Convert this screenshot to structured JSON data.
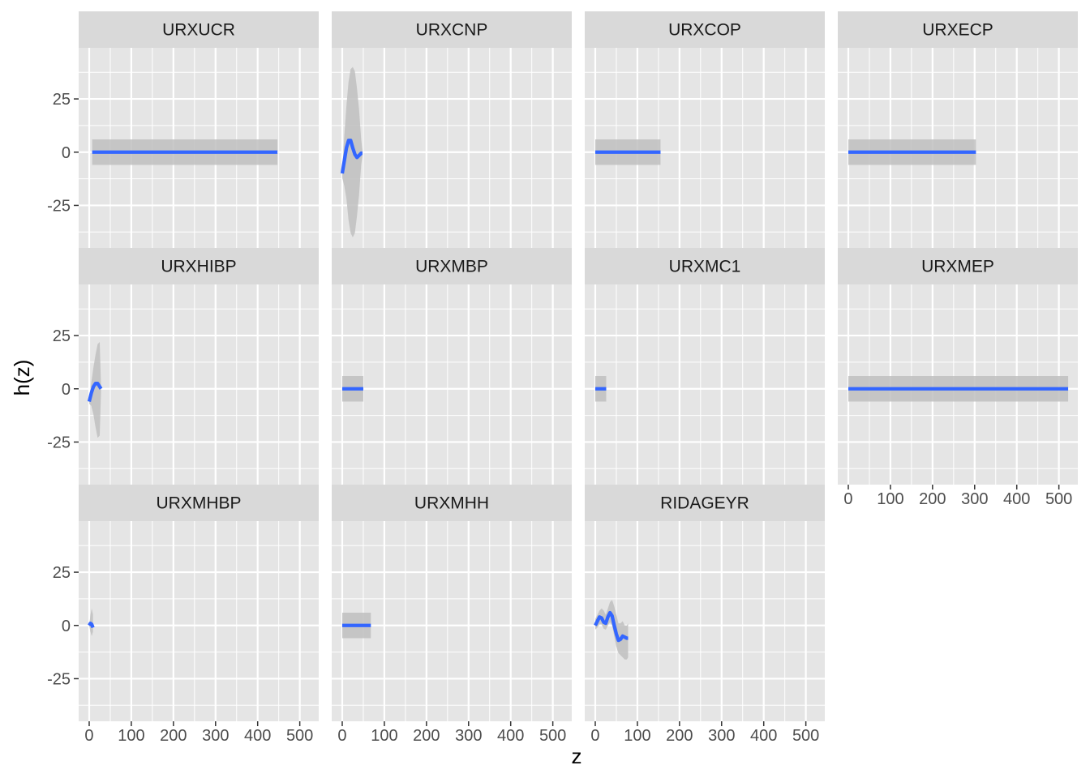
{
  "chart_data": {
    "type": "line",
    "xlabel": "z",
    "ylabel": "h(z)",
    "xlim": [
      -25,
      545
    ],
    "ylim": [
      -45,
      49
    ],
    "x_ticks": [
      0,
      100,
      200,
      300,
      400,
      500
    ],
    "y_ticks": [
      -25,
      0,
      25
    ],
    "grid": true,
    "legend": "none",
    "colors": {
      "line": "#3366ff",
      "ribbon": "#bfbfbf",
      "panel_background": "#e5e5e5",
      "strip_background": "#d9d9d9",
      "grid": "#ffffff"
    },
    "facets": [
      {
        "name": "URXUCR",
        "x": [
          7,
          447
        ],
        "y": [
          0,
          0
        ],
        "lower": [
          -6,
          -6
        ],
        "upper": [
          6,
          6
        ]
      },
      {
        "name": "URXCNP",
        "x": [
          0,
          5,
          10,
          15,
          20,
          25,
          30,
          35,
          40,
          45,
          48
        ],
        "y": [
          -10,
          -4,
          2,
          5.5,
          5.5,
          2,
          -1,
          -2.5,
          -1.5,
          -0.5,
          -0.5
        ],
        "lower": [
          -12,
          -16,
          -22,
          -32,
          -38,
          -40,
          -38,
          -30,
          -20,
          -6,
          -2
        ],
        "upper": [
          -8,
          8,
          22,
          33,
          39,
          40,
          38,
          30,
          20,
          6,
          1
        ]
      },
      {
        "name": "URXCOP",
        "x": [
          0,
          155
        ],
        "y": [
          0,
          0
        ],
        "lower": [
          -6,
          -6
        ],
        "upper": [
          6,
          6
        ]
      },
      {
        "name": "URXECP",
        "x": [
          0,
          303
        ],
        "y": [
          0,
          0
        ],
        "lower": [
          -6,
          -6
        ],
        "upper": [
          6,
          6
        ]
      },
      {
        "name": "URXHIBP",
        "x": [
          0,
          5,
          10,
          15,
          20,
          25,
          28
        ],
        "y": [
          -6,
          -2,
          1,
          2.5,
          2.5,
          1,
          0
        ],
        "lower": [
          -7,
          -8,
          -12,
          -18,
          -23,
          -22,
          -2
        ],
        "upper": [
          -5,
          3,
          10,
          16,
          21,
          22,
          2
        ]
      },
      {
        "name": "URXMBP",
        "x": [
          0,
          50
        ],
        "y": [
          0,
          0
        ],
        "lower": [
          -6,
          -6
        ],
        "upper": [
          6,
          6
        ]
      },
      {
        "name": "URXMC1",
        "x": [
          0,
          26
        ],
        "y": [
          0,
          0
        ],
        "lower": [
          -6,
          -6
        ],
        "upper": [
          6,
          6
        ]
      },
      {
        "name": "URXMEP",
        "x": [
          0,
          522
        ],
        "y": [
          0,
          0
        ],
        "lower": [
          -6,
          -6
        ],
        "upper": [
          6,
          6
        ]
      },
      {
        "name": "URXMHBP",
        "x": [
          0,
          3,
          6,
          9
        ],
        "y": [
          0,
          1,
          0.5,
          -1
        ],
        "lower": [
          0,
          -3,
          -5,
          -3
        ],
        "upper": [
          0,
          5,
          8,
          5
        ]
      },
      {
        "name": "URXMHH",
        "x": [
          0,
          68
        ],
        "y": [
          0,
          0
        ],
        "lower": [
          -6,
          -6
        ],
        "upper": [
          6,
          6
        ]
      },
      {
        "name": "RIDAGEYR",
        "x": [
          0,
          5,
          10,
          15,
          20,
          25,
          30,
          35,
          40,
          45,
          50,
          55,
          60,
          65,
          70,
          75,
          78
        ],
        "y": [
          0,
          2,
          4,
          3.5,
          1.5,
          1,
          4,
          6,
          4.5,
          0,
          -4,
          -7,
          -6.5,
          -5,
          -5.5,
          -6,
          -6
        ],
        "lower": [
          -2,
          -1,
          0.5,
          0.5,
          -1.5,
          -2,
          0,
          1.5,
          0,
          -5,
          -10,
          -13,
          -14,
          -15,
          -16,
          -16,
          -15
        ],
        "upper": [
          3,
          5,
          7,
          8,
          7,
          5,
          8,
          11,
          12,
          9,
          5,
          1,
          1,
          2,
          0,
          0,
          1
        ]
      }
    ]
  }
}
